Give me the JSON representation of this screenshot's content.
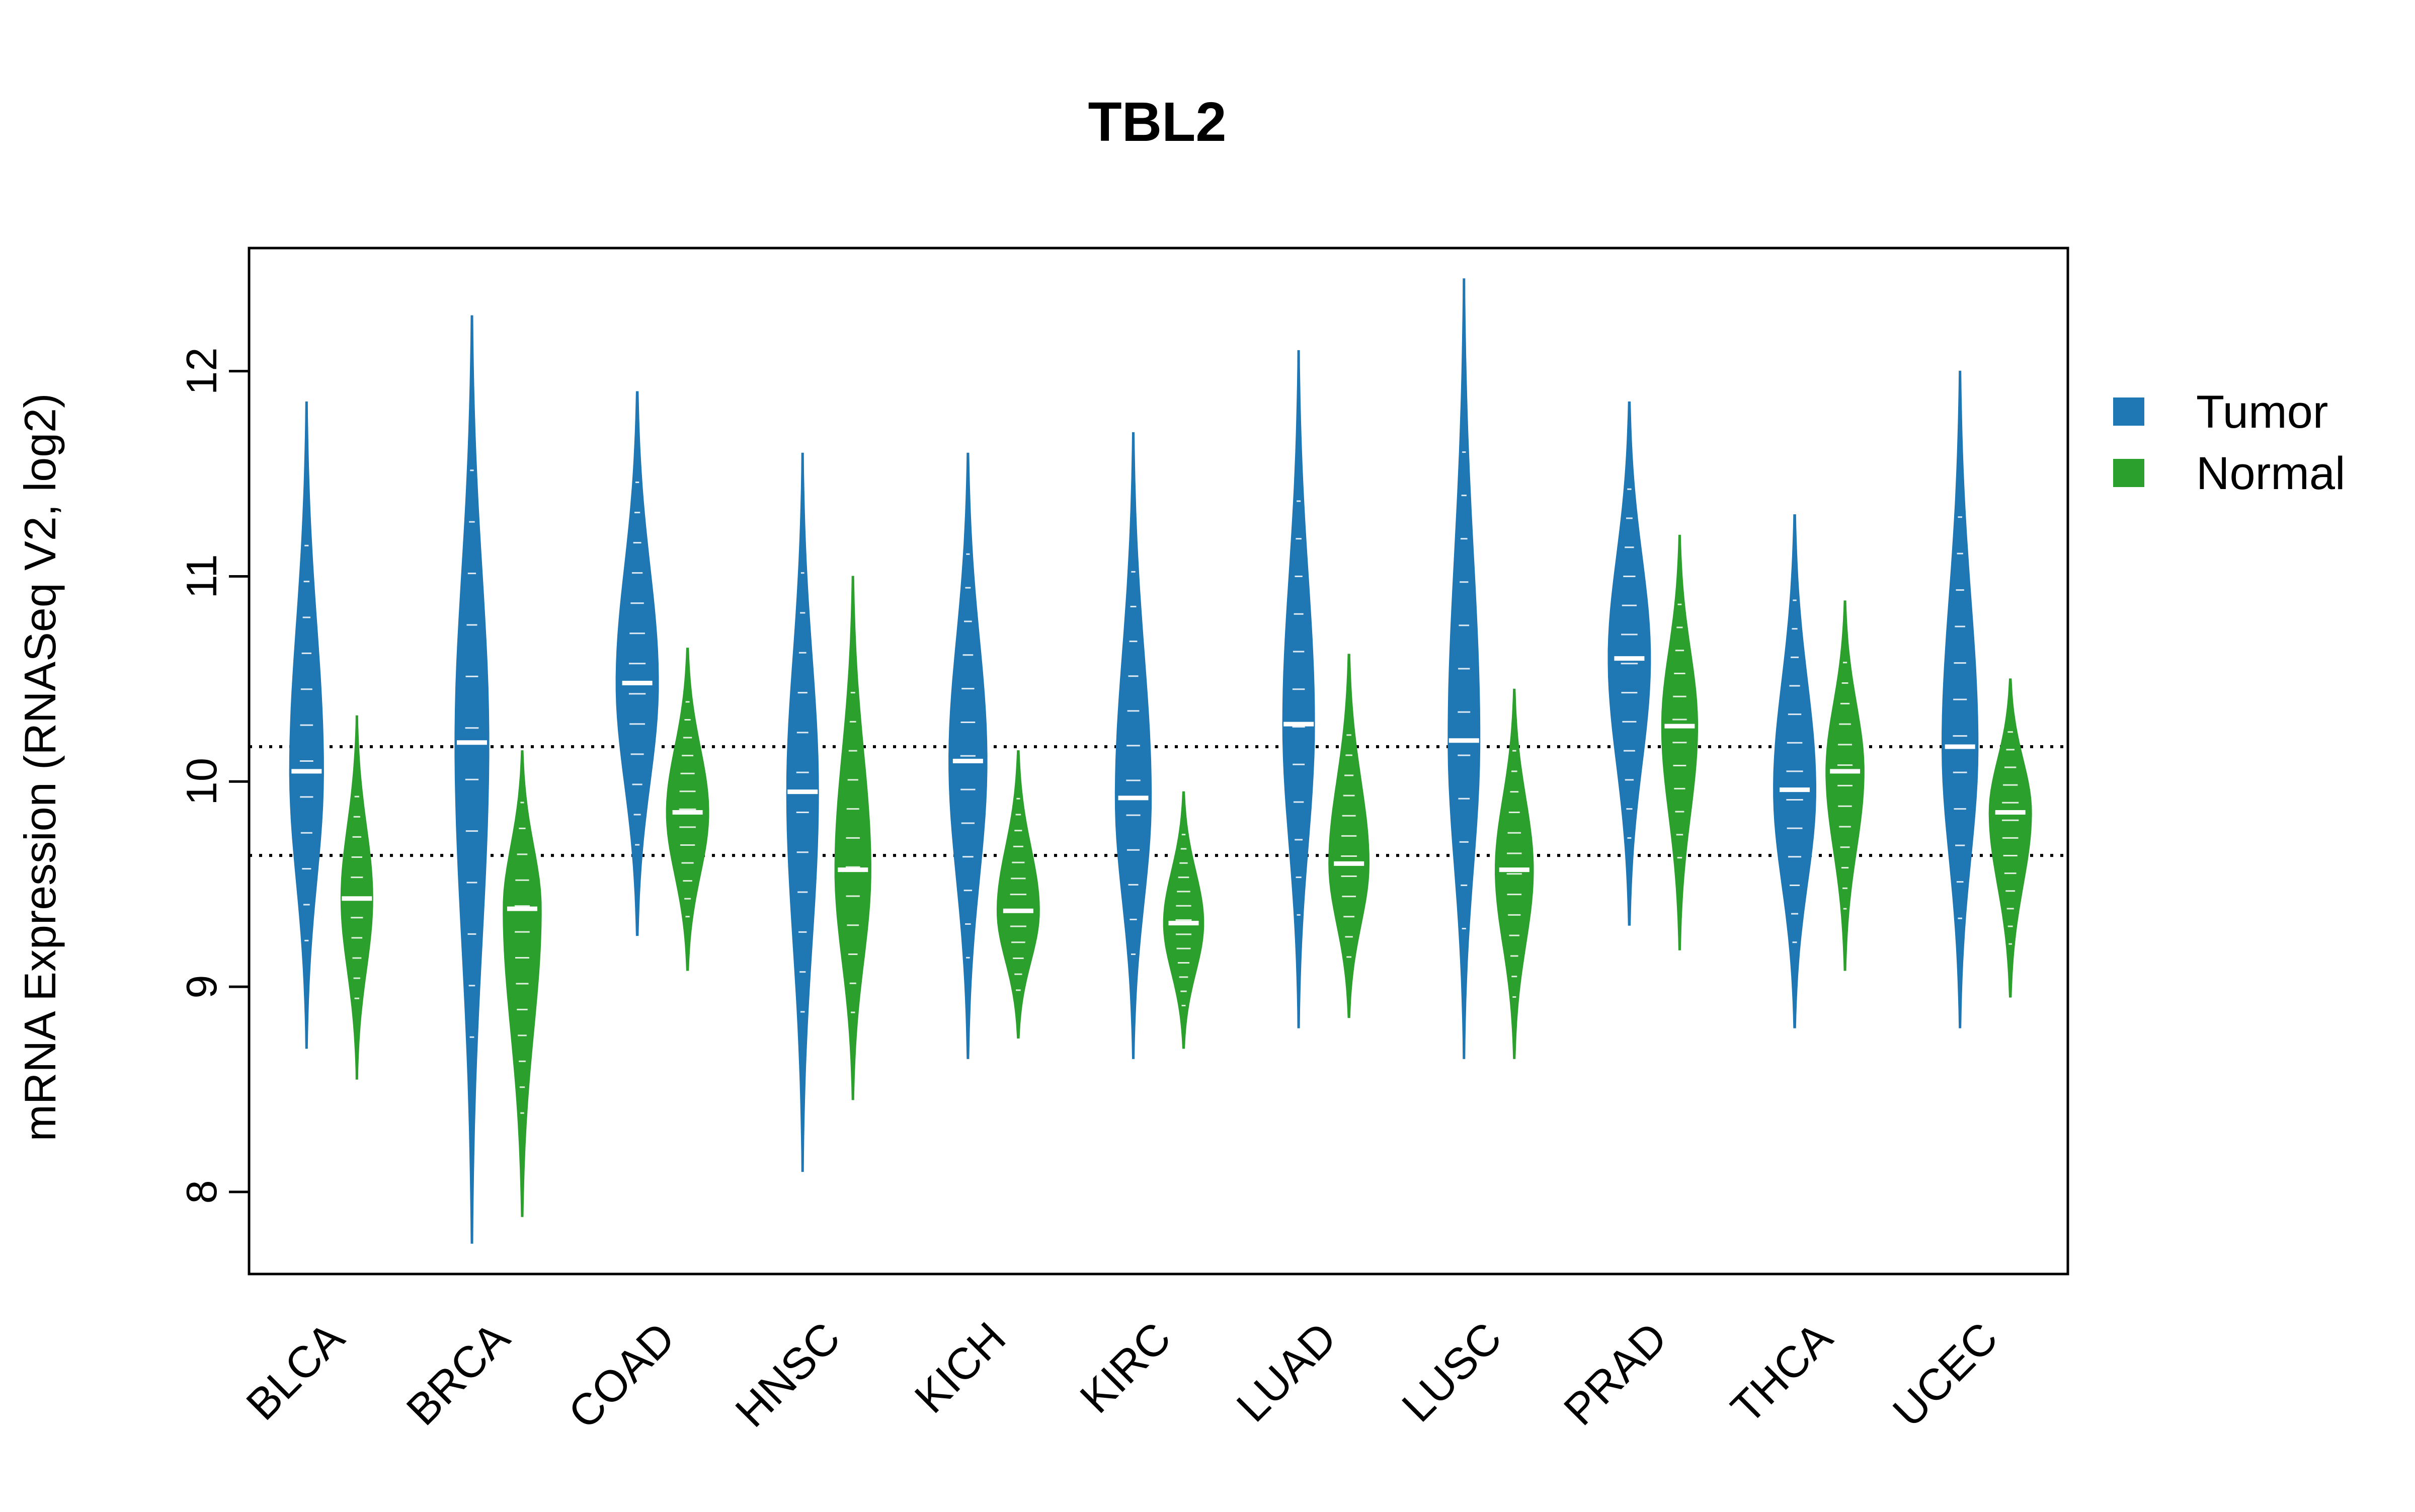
{
  "chart_data": {
    "type": "violin",
    "title": "TBL2",
    "ylabel": "mRNA Expression (RNASeq V2, log2)",
    "xlabel": "",
    "ylim": [
      7.6,
      12.6
    ],
    "yticks": [
      8,
      9,
      10,
      11,
      12
    ],
    "categories": [
      "BLCA",
      "BRCA",
      "COAD",
      "HNSC",
      "KICH",
      "KIRC",
      "LUAD",
      "LUSC",
      "PRAD",
      "THCA",
      "UCEC"
    ],
    "reference_lines": [
      10.17,
      9.64
    ],
    "legend": {
      "position": "right",
      "entries": [
        "Tumor",
        "Normal"
      ]
    },
    "grid": false,
    "colors": {
      "Tumor": "#1f77b4",
      "Normal": "#2ca02c"
    },
    "series": [
      {
        "name": "Tumor",
        "median": [
          10.05,
          10.19,
          10.48,
          9.95,
          10.1,
          9.92,
          10.28,
          10.2,
          10.6,
          9.96,
          10.17
        ],
        "min": [
          8.7,
          7.75,
          9.25,
          8.1,
          8.65,
          8.65,
          8.8,
          8.65,
          9.3,
          8.8,
          8.8
        ],
        "max": [
          11.85,
          12.27,
          11.9,
          11.6,
          11.6,
          11.7,
          12.1,
          12.45,
          11.85,
          11.3,
          12.0
        ],
        "width": [
          0.8,
          0.8,
          1.0,
          0.75,
          0.9,
          0.85,
          0.75,
          0.75,
          1.0,
          1.0,
          0.85
        ]
      },
      {
        "name": "Normal",
        "median": [
          9.43,
          9.38,
          9.85,
          9.57,
          9.37,
          9.31,
          9.6,
          9.57,
          10.27,
          10.05,
          9.85
        ],
        "min": [
          8.55,
          7.88,
          9.08,
          8.45,
          8.75,
          8.7,
          8.85,
          8.65,
          9.18,
          9.08,
          8.95
        ],
        "max": [
          10.32,
          10.15,
          10.65,
          11.0,
          10.15,
          9.95,
          10.62,
          10.45,
          11.2,
          10.88,
          10.5
        ],
        "width": [
          0.75,
          0.9,
          1.0,
          0.85,
          1.0,
          0.95,
          0.95,
          0.9,
          0.85,
          0.9,
          1.0
        ]
      }
    ]
  }
}
